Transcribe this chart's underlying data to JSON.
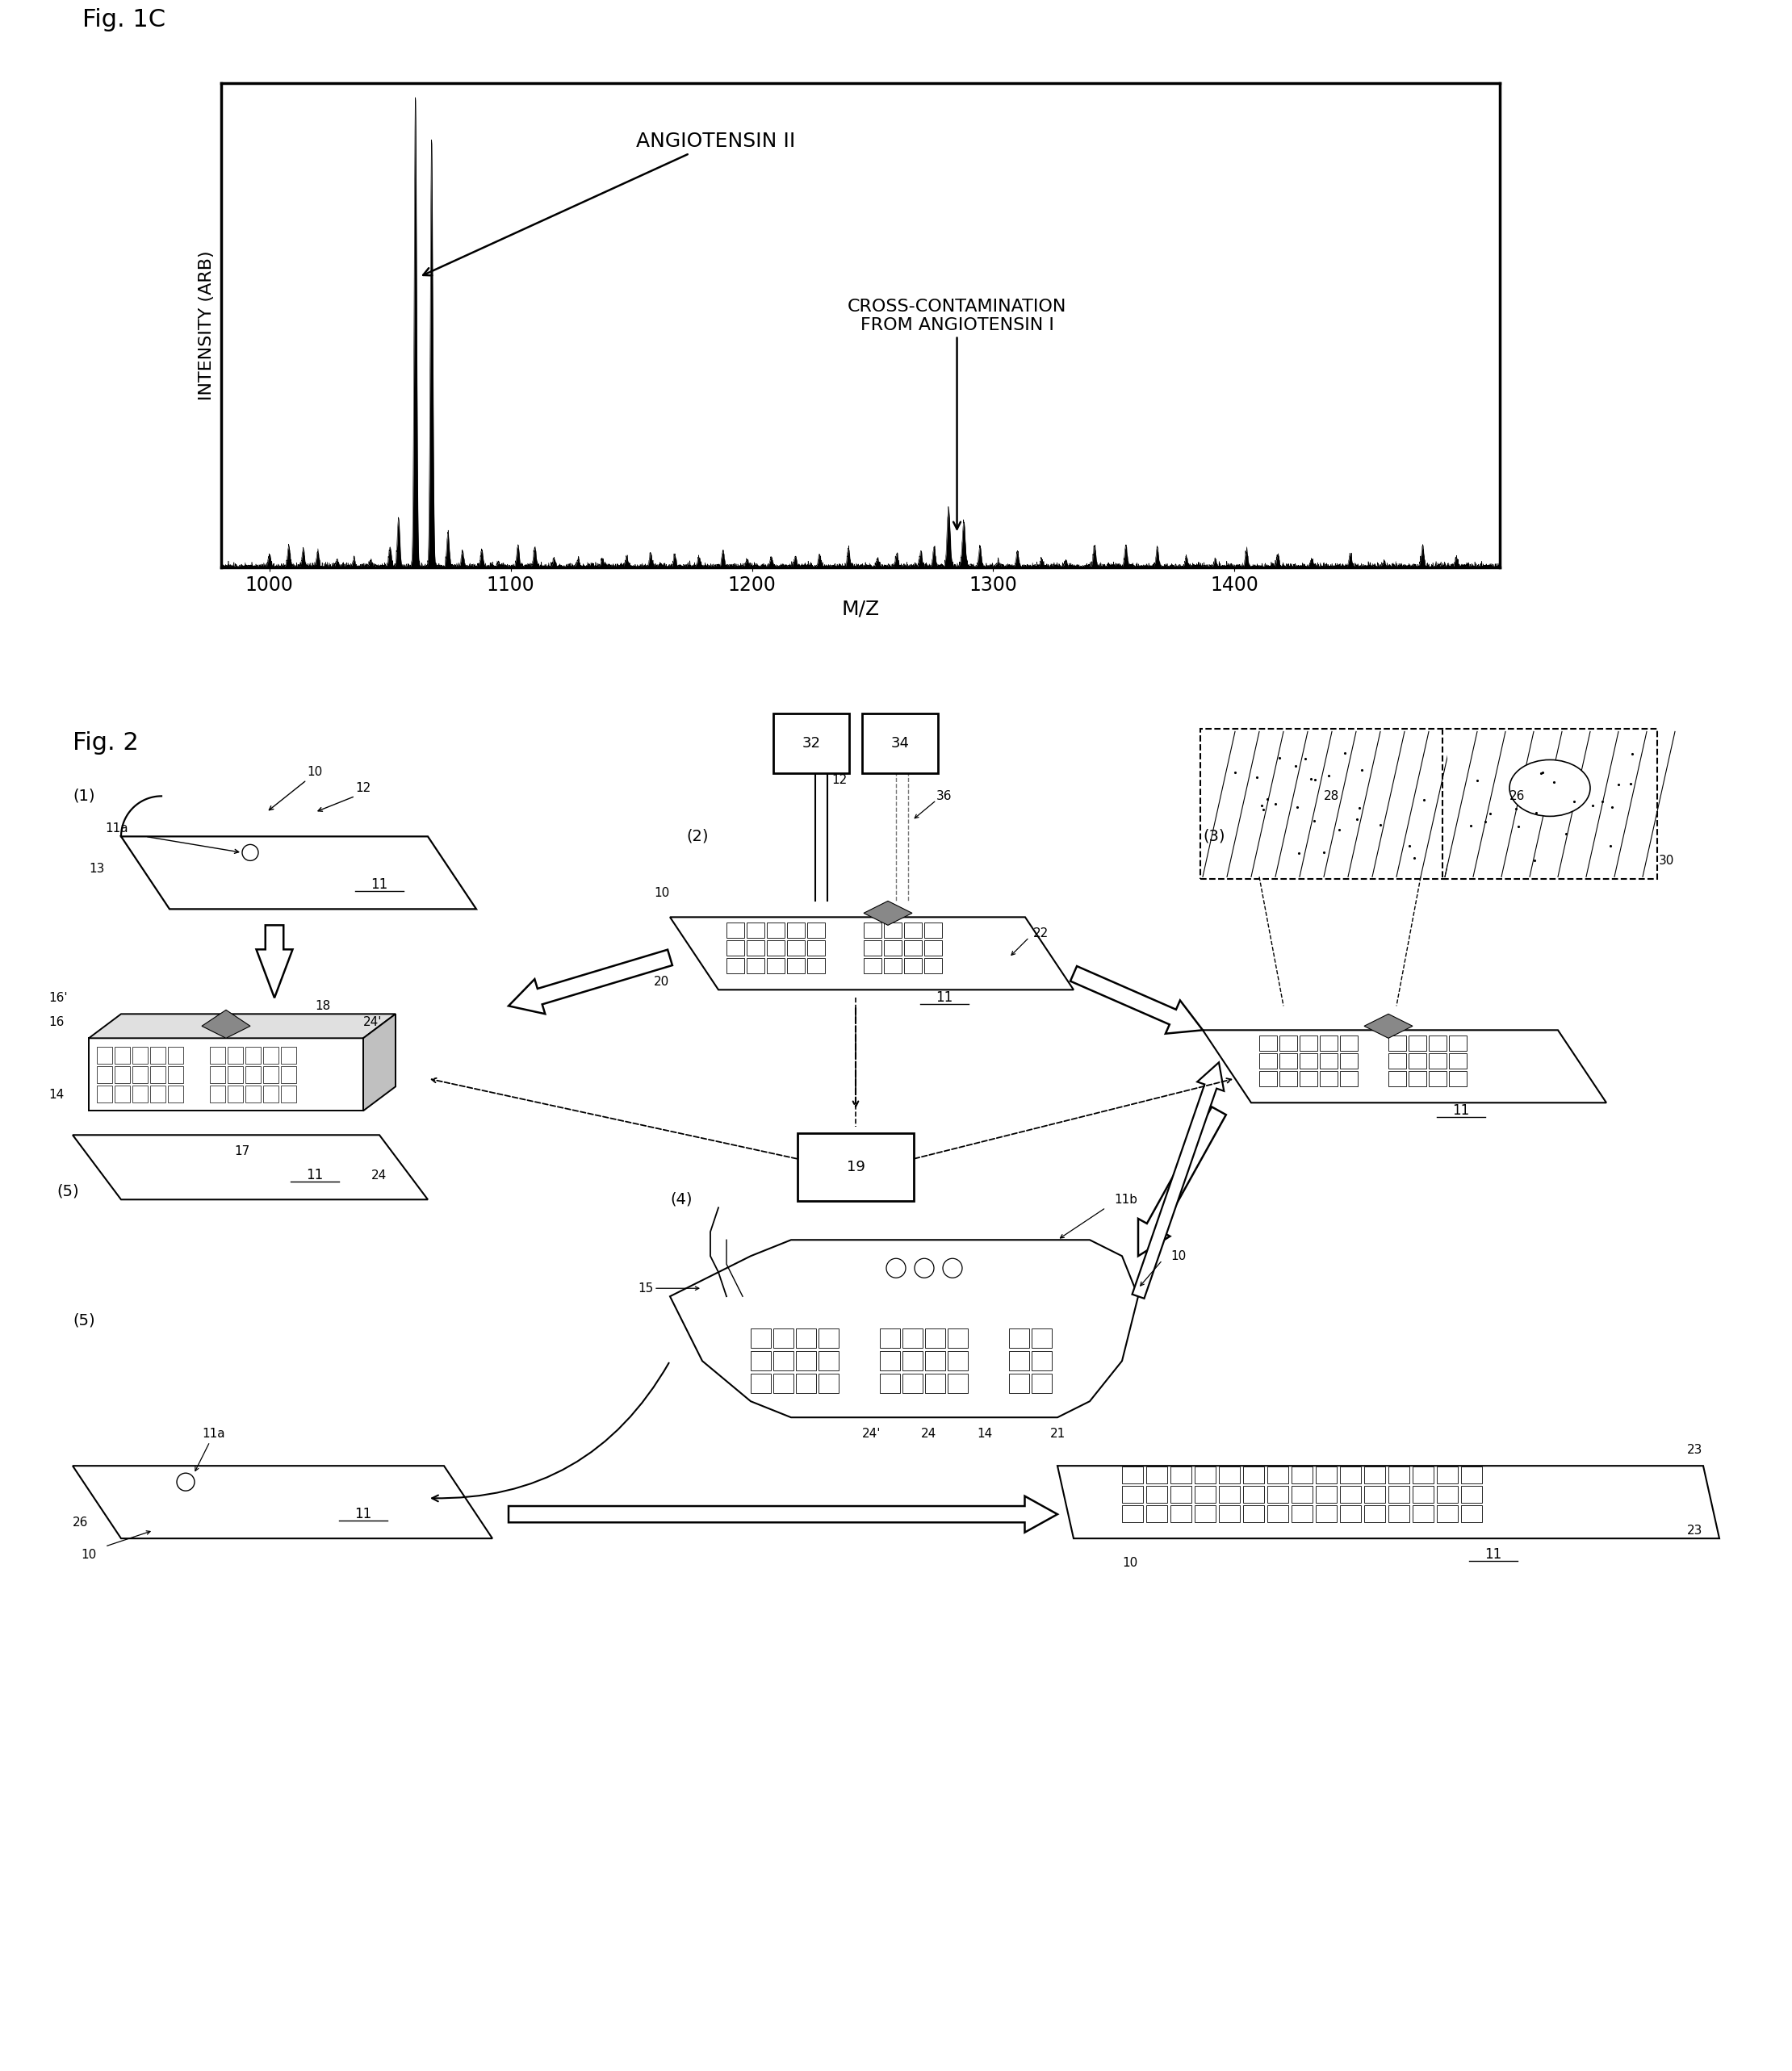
{
  "fig_label_1c": "Fig. 1C",
  "fig_label_2": "Fig. 2",
  "spectrum_xlabel": "M/Z",
  "spectrum_ylabel": "INTENSITY (ARB)",
  "spectrum_xlim": [
    980,
    1510
  ],
  "spectrum_ylim": [
    0,
    1.0
  ],
  "spectrum_xticks": [
    1000,
    1100,
    1200,
    1300,
    1400
  ],
  "angiotensin2_label": "ANGIOTENSIN II",
  "contamination_label": "CROSS-CONTAMINATION\nFROM ANGIOTENSIN I",
  "bg_color": "#ffffff",
  "line_color": "#000000",
  "font_family": "DejaVu Sans"
}
